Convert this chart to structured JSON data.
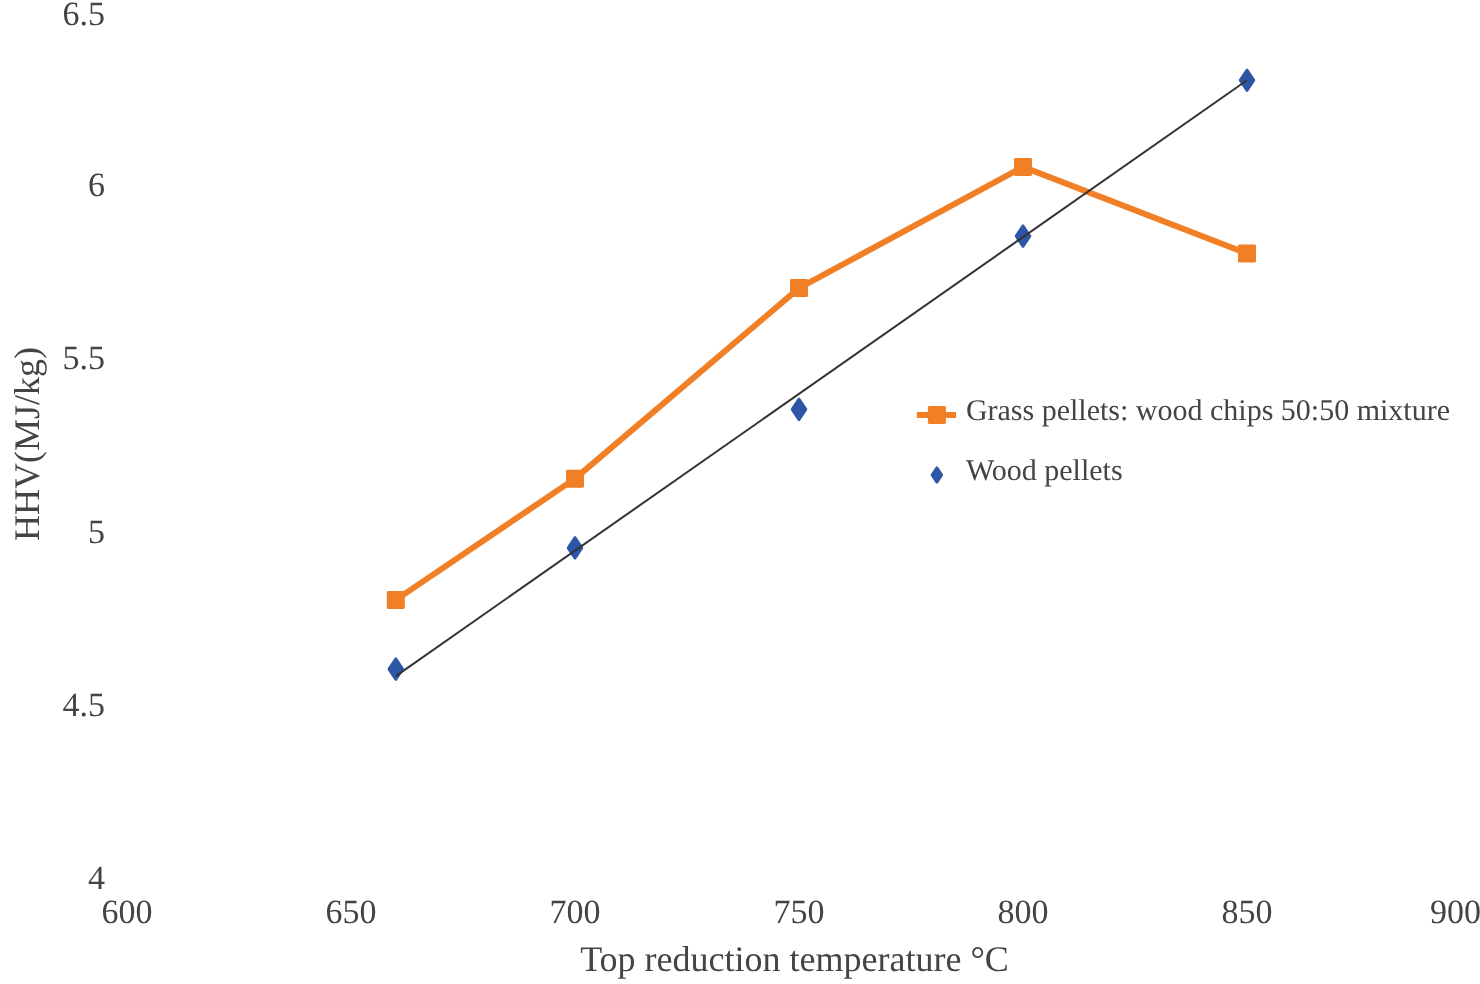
{
  "chart_data": {
    "type": "line",
    "xlabel": "Top reduction temperature  °C",
    "ylabel": "HHV(MJ/kg)",
    "x": [
      660,
      700,
      750,
      800,
      850
    ],
    "series": [
      {
        "name": "Grass pellets: wood chips 50:50 mixture",
        "color": "#f07f26",
        "values": [
          4.8,
          5.15,
          5.7,
          6.05,
          5.8
        ],
        "marker": "square"
      },
      {
        "name": "Wood pellets",
        "type": "scatter",
        "color": "#2e56a6",
        "values": [
          4.6,
          4.95,
          5.35,
          5.85,
          6.3
        ],
        "marker": "diamond"
      },
      {
        "type": "line",
        "color": "#333333",
        "x": [
          660,
          850
        ],
        "values": [
          4.58,
          6.3
        ],
        "marker": "none"
      }
    ],
    "xlim": [
      600,
      900
    ],
    "xticks": [
      600,
      650,
      700,
      750,
      800,
      850,
      900
    ],
    "ylim": [
      4,
      6.5
    ],
    "yticks": [
      4,
      4.5,
      5,
      5.5,
      6,
      6.5
    ],
    "grid": false,
    "legend": "right"
  }
}
